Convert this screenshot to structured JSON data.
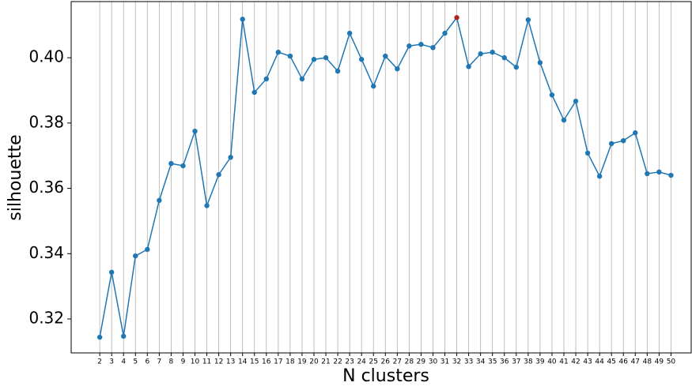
{
  "chart_data": {
    "type": "line",
    "xlabel": "N clusters",
    "ylabel": "silhouette",
    "x": [
      2,
      3,
      4,
      5,
      6,
      7,
      8,
      9,
      10,
      11,
      12,
      13,
      14,
      15,
      16,
      17,
      18,
      19,
      20,
      21,
      22,
      23,
      24,
      25,
      26,
      27,
      28,
      29,
      30,
      31,
      32,
      33,
      34,
      35,
      36,
      37,
      38,
      39,
      40,
      41,
      42,
      43,
      44,
      45,
      46,
      47,
      48,
      49,
      50
    ],
    "series": [
      {
        "color": "#1f77b4",
        "values": [
          0.3144,
          0.3343,
          0.3147,
          0.3393,
          0.3413,
          0.3563,
          0.3676,
          0.3669,
          0.3775,
          0.3547,
          0.3642,
          0.3695,
          0.4118,
          0.3894,
          0.3935,
          0.4017,
          0.4005,
          0.3935,
          0.3995,
          0.4,
          0.3959,
          0.4075,
          0.3995,
          0.3913,
          0.4005,
          0.3966,
          0.4036,
          0.4041,
          0.4031,
          0.4075,
          0.4123,
          0.3973,
          0.4012,
          0.4017,
          0.4,
          0.3971,
          0.4116,
          0.3985,
          0.3886,
          0.3809,
          0.3867,
          0.3708,
          0.3637,
          0.3737,
          0.3746,
          0.377,
          0.3645,
          0.365,
          0.364
        ]
      }
    ],
    "highlight_x": 32,
    "highlight_color": "#b22222",
    "xlim": [
      -0.4,
      51.7
    ],
    "ylim": [
      0.3096,
      0.4172
    ],
    "xticks": [
      2,
      3,
      4,
      5,
      6,
      7,
      8,
      9,
      10,
      11,
      12,
      13,
      14,
      15,
      16,
      17,
      18,
      19,
      20,
      21,
      22,
      23,
      24,
      25,
      26,
      27,
      28,
      29,
      30,
      31,
      32,
      33,
      34,
      35,
      36,
      37,
      38,
      39,
      40,
      41,
      42,
      43,
      44,
      45,
      46,
      47,
      48,
      49,
      50
    ],
    "yticks": [
      0.32,
      0.34,
      0.36,
      0.38,
      {
        "value": 0.4,
        "label": "0.40"
      }
    ],
    "grid": "x"
  }
}
